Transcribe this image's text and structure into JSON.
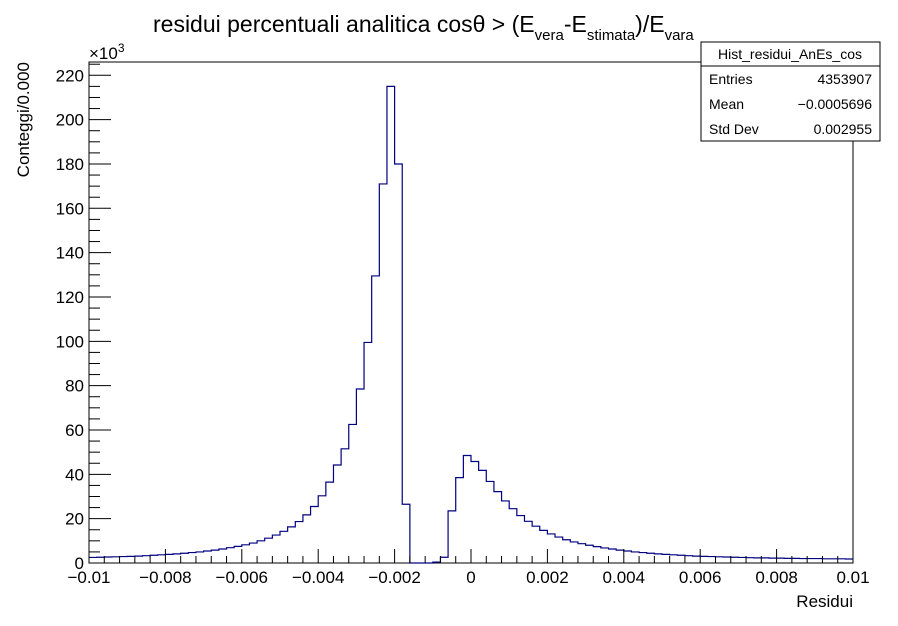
{
  "chart_data": {
    "type": "histogram",
    "title": {
      "main": "residui percentuali analitica cosθ > (E",
      "sub1": "vera",
      "mid": "-E",
      "sub2": "stimata",
      "end": ")/E",
      "sub3": "vara"
    },
    "xlabel": "Residui",
    "ylabel": "Conteggi/0.000",
    "y_exponent_base": "×10",
    "y_exponent_power": "3",
    "xlim": [
      -0.01,
      0.01
    ],
    "ylim": [
      0,
      226
    ],
    "x_ticks": [
      {
        "value": -0.01,
        "label": "−0.01"
      },
      {
        "value": -0.008,
        "label": "−0.008"
      },
      {
        "value": -0.006,
        "label": "−0.006"
      },
      {
        "value": -0.004,
        "label": "−0.004"
      },
      {
        "value": -0.002,
        "label": "−0.002"
      },
      {
        "value": 0,
        "label": "0"
      },
      {
        "value": 0.002,
        "label": "0.002"
      },
      {
        "value": 0.004,
        "label": "0.004"
      },
      {
        "value": 0.006,
        "label": "0.006"
      },
      {
        "value": 0.008,
        "label": "0.008"
      },
      {
        "value": 0.01,
        "label": "0.01"
      }
    ],
    "y_ticks": [
      0,
      20,
      40,
      60,
      80,
      100,
      120,
      140,
      160,
      180,
      200,
      220
    ],
    "bin_edges_start": -0.01,
    "bin_width": 0.0002,
    "counts": [
      2.5,
      2.6,
      2.7,
      2.8,
      2.9,
      3.0,
      3.1,
      3.3,
      3.5,
      3.7,
      3.9,
      4.1,
      4.4,
      4.7,
      5.0,
      5.4,
      5.8,
      6.3,
      6.9,
      7.5,
      8.2,
      9.0,
      10.0,
      11.2,
      12.6,
      14.3,
      16.3,
      18.7,
      21.7,
      25.5,
      30.3,
      36.5,
      44.2,
      51.5,
      62.5,
      78.5,
      99.5,
      129.5,
      171,
      215,
      180,
      26.5,
      0,
      0,
      0,
      0.4,
      2.6,
      23.5,
      38.5,
      48.5,
      45.8,
      41.8,
      36.8,
      32.2,
      28.0,
      24.5,
      21.4,
      18.8,
      16.6,
      14.7,
      13.1,
      11.7,
      10.5,
      9.5,
      8.7,
      8.0,
      7.4,
      6.8,
      6.3,
      5.8,
      5.4,
      5.0,
      4.7,
      4.4,
      4.1,
      3.9,
      3.7,
      3.5,
      3.3,
      3.1,
      3.0,
      2.9,
      2.8,
      2.7,
      2.6,
      2.5,
      2.4,
      2.3,
      2.3,
      2.2,
      2.2,
      2.1,
      2.1,
      2.0,
      2.0,
      2.0,
      1.9,
      1.9,
      1.9,
      1.8
    ],
    "line_color": "#000080",
    "stats_box": {
      "name": "Hist_residui_AnEs_cos",
      "rows": [
        {
          "label": "Entries",
          "value": "4353907"
        },
        {
          "label": "Mean",
          "value": "−0.0005696"
        },
        {
          "label": "Std Dev",
          "value": "0.002955"
        }
      ]
    }
  }
}
